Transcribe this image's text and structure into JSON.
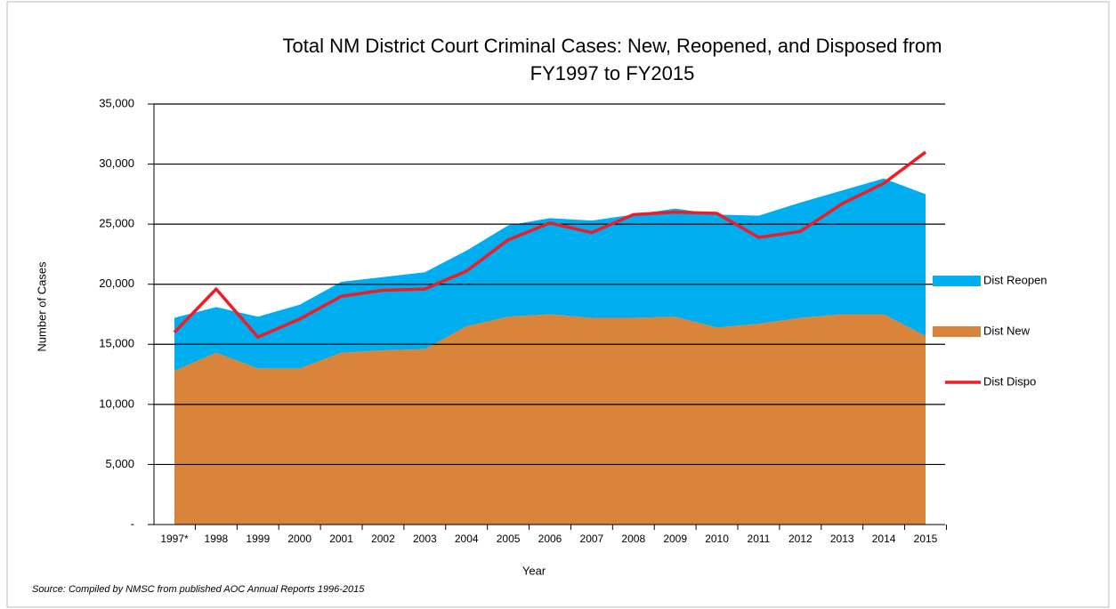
{
  "chart_data": {
    "type": "stacked-area-line",
    "title": [
      "Total NM District Court Criminal Cases: New, Reopened, and Disposed from",
      "FY1997 to FY2015"
    ],
    "x_label": "Year",
    "y_label": "Number of Cases",
    "source": "Source: Compiled by NMSC from published AOC Annual Reports 1996-2015",
    "categories": [
      "1997*",
      "1998",
      "1999",
      "2000",
      "2001",
      "2002",
      "2003",
      "2004",
      "2005",
      "2006",
      "2007",
      "2008",
      "2009",
      "2010",
      "2011",
      "2012",
      "2013",
      "2014",
      "2015"
    ],
    "series": [
      {
        "name": "Dist New",
        "kind": "area",
        "color": "#d9843b",
        "values": [
          12800,
          14300,
          13000,
          13000,
          14300,
          14500,
          14600,
          16500,
          17300,
          17500,
          17200,
          17200,
          17300,
          16400,
          16700,
          17200,
          17500,
          17500,
          15700
        ]
      },
      {
        "name": "Dist Reopen",
        "kind": "area",
        "color": "#00aeef",
        "values": [
          4400,
          3800,
          4300,
          5300,
          5900,
          6100,
          6400,
          6300,
          7600,
          8000,
          8100,
          8600,
          9000,
          9400,
          9000,
          9600,
          10300,
          11300,
          11800
        ]
      },
      {
        "name": "Dist Dispo",
        "kind": "line",
        "color": "#ee1c25",
        "values": [
          16000,
          19600,
          15600,
          17100,
          19000,
          19500,
          19600,
          21100,
          23700,
          25100,
          24300,
          25800,
          26000,
          25900,
          23900,
          24400,
          26700,
          28400,
          31000
        ]
      }
    ],
    "ylim": [
      0,
      35000
    ],
    "yticks": [
      {
        "value": 0,
        "label": "-"
      },
      {
        "value": 5000,
        "label": "5,000"
      },
      {
        "value": 10000,
        "label": "10,000"
      },
      {
        "value": 15000,
        "label": "15,000"
      },
      {
        "value": 20000,
        "label": "20,000"
      },
      {
        "value": 25000,
        "label": "25,000"
      },
      {
        "value": 30000,
        "label": "30,000"
      },
      {
        "value": 35000,
        "label": "35,000"
      }
    ],
    "grid": true
  }
}
